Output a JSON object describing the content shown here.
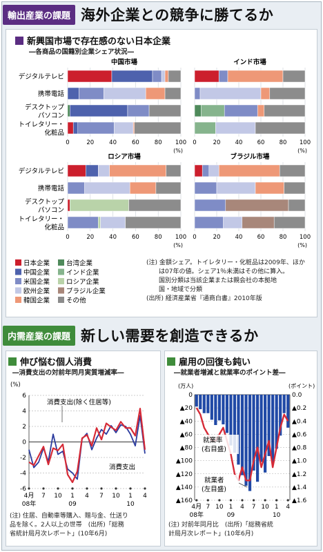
{
  "top": {
    "tag": "輸出産業の課題",
    "title": "海外企業との競争に勝てるか",
    "panel_heading": "新興国市場で存在感のない日本企業",
    "panel_subheading": "―各商品の国籍別企業シェア状況―",
    "unit": "(%)",
    "row_labels": [
      [
        "デジタルテレビ"
      ],
      [
        "携帯電話"
      ],
      [
        "デスクトップ",
        "パソコン"
      ],
      [
        "トイレタリー・",
        "化粧品"
      ]
    ],
    "legend": [
      {
        "label": "日本企業",
        "color": "#cc1f2d"
      },
      {
        "label": "台湾企業",
        "color": "#4f8a5b"
      },
      {
        "label": "中国企業",
        "color": "#4e62ad"
      },
      {
        "label": "インド企業",
        "color": "#86b48d"
      },
      {
        "label": "米国企業",
        "color": "#7f8cc6"
      },
      {
        "label": "ロシア企業",
        "color": "#b9d3a9"
      },
      {
        "label": "欧州企業",
        "color": "#c2c8e6"
      },
      {
        "label": "ブラジル企業",
        "color": "#a8877a"
      },
      {
        "label": "韓国企業",
        "color": "#ee9877"
      },
      {
        "label": "その他",
        "color": "#8c8c8c"
      }
    ],
    "note_lines": [
      "(注) 金額シェア。トイレタリー・化粧品は2009年、ほか",
      "は07年の値。シェア1％未満はその他に算入。",
      "国別分類は当該企業または親会社の本拠地",
      "国・地域で分類",
      "(出所) 経済産業省『通商白書』2010年版"
    ]
  },
  "bottom": {
    "tag": "内需産業の課題",
    "title": "新しい需要を創造できるか",
    "left_heading": "伸び悩む個人消費",
    "left_subheading": "―消費支出の対前年同月実質増減率―",
    "left_notes": [
      "(注) 住居、自動車等購入、贈与金、仕送り",
      "品を除く。2人以上の世帯　(出所)「総務",
      "省統計局月次レポート」(10年6月)"
    ],
    "right_heading": "雇用の回復も鈍い",
    "right_subheading": "―就業者増減と就業率のポイント差―",
    "right_notes": [
      "(注) 対前年同月比　(出所)「総務省統",
      "計局月次レポート」(10年6月)"
    ]
  },
  "chart_data": [
    {
      "type": "bar",
      "title": "中国市場",
      "categories": [
        "デジタルテレビ",
        "携帯電話",
        "デスクトップパソコン",
        "トイレタリー・化粧品"
      ],
      "xlim": [
        0,
        100
      ],
      "series": [
        {
          "name": "日本企業",
          "values": [
            39,
            0,
            0,
            5
          ]
        },
        {
          "name": "台湾企業",
          "values": [
            0,
            0,
            2,
            0
          ]
        },
        {
          "name": "中国企業",
          "values": [
            36,
            10,
            51,
            4
          ]
        },
        {
          "name": "インド企業",
          "values": [
            0,
            0,
            0,
            0
          ]
        },
        {
          "name": "米国企業",
          "values": [
            8,
            22,
            19,
            32
          ]
        },
        {
          "name": "ロシア企業",
          "values": [
            0,
            0,
            0,
            0
          ]
        },
        {
          "name": "欧州企業",
          "values": [
            3,
            37,
            0,
            17
          ]
        },
        {
          "name": "ブラジル企業",
          "values": [
            0,
            0,
            0,
            0
          ]
        },
        {
          "name": "韓国企業",
          "values": [
            3,
            17,
            0,
            1
          ]
        },
        {
          "name": "その他",
          "values": [
            11,
            14,
            28,
            41
          ]
        }
      ]
    },
    {
      "type": "bar",
      "title": "インド市場",
      "categories": [
        "デジタルテレビ",
        "携帯電話",
        "デスクトップパソコン",
        "トイレタリー・化粧品"
      ],
      "xlim": [
        0,
        100
      ],
      "series": [
        {
          "name": "日本企業",
          "values": [
            22,
            0,
            0,
            0
          ]
        },
        {
          "name": "台湾企業",
          "values": [
            0,
            0,
            6,
            0
          ]
        },
        {
          "name": "中国企業",
          "values": [
            0,
            0,
            0,
            0
          ]
        },
        {
          "name": "インド企業",
          "values": [
            0,
            0,
            21,
            19
          ]
        },
        {
          "name": "米国企業",
          "values": [
            8,
            5,
            30,
            0
          ]
        },
        {
          "name": "ロシア企業",
          "values": [
            0,
            0,
            0,
            0
          ]
        },
        {
          "name": "欧州企業",
          "values": [
            0,
            55,
            0,
            36
          ]
        },
        {
          "name": "ブラジル企業",
          "values": [
            0,
            0,
            0,
            0
          ]
        },
        {
          "name": "韓国企業",
          "values": [
            50,
            8,
            6,
            0
          ]
        },
        {
          "name": "その他",
          "values": [
            20,
            32,
            37,
            45
          ]
        }
      ]
    },
    {
      "type": "bar",
      "title": "ロシア市場",
      "categories": [
        "デジタルテレビ",
        "携帯電話",
        "デスクトップパソコン",
        "トイレタリー・化粧品"
      ],
      "xlim": [
        0,
        100
      ],
      "series": [
        {
          "name": "日本企業",
          "values": [
            16,
            0,
            2,
            0
          ]
        },
        {
          "name": "台湾企業",
          "values": [
            0,
            0,
            0,
            0
          ]
        },
        {
          "name": "中国企業",
          "values": [
            11,
            0,
            0,
            0
          ]
        },
        {
          "name": "インド企業",
          "values": [
            0,
            0,
            0,
            0
          ]
        },
        {
          "name": "米国企業",
          "values": [
            0,
            15,
            0,
            27
          ]
        },
        {
          "name": "ロシア企業",
          "values": [
            0,
            0,
            52,
            2
          ]
        },
        {
          "name": "欧州企業",
          "values": [
            10,
            40,
            0,
            22
          ]
        },
        {
          "name": "ブラジル企業",
          "values": [
            0,
            0,
            0,
            0
          ]
        },
        {
          "name": "韓国企業",
          "values": [
            50,
            23,
            0,
            0
          ]
        },
        {
          "name": "その他",
          "values": [
            13,
            22,
            46,
            49
          ]
        }
      ]
    },
    {
      "type": "bar",
      "title": "ブラジル市場",
      "categories": [
        "デジタルテレビ",
        "携帯電話",
        "デスクトップパソコン",
        "トイレタリー・化粧品"
      ],
      "xlim": [
        0,
        100
      ],
      "series": [
        {
          "name": "日本企業",
          "values": [
            7,
            0,
            0,
            0
          ]
        },
        {
          "name": "台湾企業",
          "values": [
            0,
            0,
            0,
            0
          ]
        },
        {
          "name": "中国企業",
          "values": [
            0,
            0,
            0,
            0
          ]
        },
        {
          "name": "インド企業",
          "values": [
            0,
            0,
            0,
            0
          ]
        },
        {
          "name": "米国企業",
          "values": [
            6,
            20,
            28,
            26
          ]
        },
        {
          "name": "ロシア企業",
          "values": [
            0,
            0,
            0,
            0
          ]
        },
        {
          "name": "欧州企業",
          "values": [
            9,
            35,
            0,
            17
          ]
        },
        {
          "name": "ブラジル企業",
          "values": [
            0,
            0,
            57,
            29
          ]
        },
        {
          "name": "韓国企業",
          "values": [
            55,
            26,
            0,
            0
          ]
        },
        {
          "name": "その他",
          "values": [
            23,
            19,
            15,
            28
          ]
        }
      ]
    },
    {
      "type": "line",
      "ylabel": "(%)",
      "ylim": [
        -6,
        6
      ],
      "yticks": [
        -6,
        -4,
        -2,
        0,
        2,
        4,
        6
      ],
      "xtick_labels": [
        {
          "i": 0,
          "label": "4月"
        },
        {
          "i": 3,
          "label": "7"
        },
        {
          "i": 6,
          "label": "10"
        },
        {
          "i": 9,
          "label": "1"
        },
        {
          "i": 12,
          "label": "4"
        },
        {
          "i": 15,
          "label": "7"
        },
        {
          "i": 18,
          "label": "10"
        },
        {
          "i": 21,
          "label": "1"
        },
        {
          "i": 24,
          "label": "4"
        }
      ],
      "year_labels": [
        {
          "i": 0,
          "label": "08年"
        },
        {
          "i": 9,
          "label": "09"
        },
        {
          "i": 21,
          "label": "10"
        }
      ],
      "x": [
        "2008-04",
        "2008-05",
        "2008-06",
        "2008-07",
        "2008-08",
        "2008-09",
        "2008-10",
        "2008-11",
        "2008-12",
        "2009-01",
        "2009-02",
        "2009-03",
        "2009-04",
        "2009-05",
        "2009-06",
        "2009-07",
        "2009-08",
        "2009-09",
        "2009-10",
        "2009-11",
        "2009-12",
        "2010-01",
        "2010-02",
        "2010-03",
        "2010-04"
      ],
      "series": [
        {
          "name": "消費支出(除く住居等)",
          "color": "#2b3b9e",
          "values": [
            -1.0,
            -3.3,
            -2.6,
            -0.8,
            -2.5,
            1.0,
            -1.6,
            -1.2,
            -3.5,
            -4.0,
            -4.8,
            0.4,
            1.1,
            -1.0,
            0.5,
            1.6,
            1.0,
            2.1,
            1.2,
            2.2,
            2.0,
            1.0,
            -0.5,
            3.4,
            -1.5
          ]
        },
        {
          "name": "消費支出",
          "color": "#d62a36",
          "values": [
            -2.6,
            -3.0,
            -1.8,
            -0.6,
            -2.9,
            -0.8,
            -1.1,
            -0.3,
            -4.2,
            -5.2,
            -3.8,
            0.5,
            0.9,
            -0.5,
            1.8,
            0.3,
            2.4,
            1.9,
            1.5,
            2.6,
            1.8,
            1.8,
            0.8,
            4.3,
            -1.0
          ]
        }
      ],
      "annotations": [
        "消費支出(除く住居等)",
        "消費支出"
      ]
    },
    {
      "type": "bar",
      "ylabel": "(万人)",
      "y2label": "(ポイント)",
      "ylim": [
        -160,
        0
      ],
      "y2lim": [
        -1.6,
        0.0
      ],
      "yticks": [
        0,
        -20,
        -40,
        -60,
        -80,
        -100,
        -120,
        -140,
        -160
      ],
      "y2ticks": [
        0.0,
        -0.2,
        -0.4,
        -0.6,
        -0.8,
        -1.0,
        -1.2,
        -1.4,
        -1.6
      ],
      "xtick_labels": [
        {
          "i": 0,
          "label": "4月"
        },
        {
          "i": 3,
          "label": "7"
        },
        {
          "i": 6,
          "label": "10"
        },
        {
          "i": 9,
          "label": "1"
        },
        {
          "i": 12,
          "label": "4"
        },
        {
          "i": 15,
          "label": "7"
        },
        {
          "i": 18,
          "label": "10"
        },
        {
          "i": 21,
          "label": "1"
        },
        {
          "i": 24,
          "label": "4"
        }
      ],
      "year_labels": [
        {
          "i": 0,
          "label": "08年"
        },
        {
          "i": 9,
          "label": "09"
        },
        {
          "i": 21,
          "label": "10"
        }
      ],
      "x": [
        "2008-04",
        "2008-05",
        "2008-06",
        "2008-07",
        "2008-08",
        "2008-09",
        "2008-10",
        "2008-11",
        "2008-12",
        "2009-01",
        "2009-02",
        "2009-03",
        "2009-04",
        "2009-05",
        "2009-06",
        "2009-07",
        "2009-08",
        "2009-09",
        "2009-10",
        "2009-11",
        "2009-12",
        "2010-01",
        "2010-02",
        "2010-03",
        "2010-04"
      ],
      "series": [
        {
          "name": "就業者(左目盛)",
          "axis": "left",
          "color": "#2049a6",
          "values": [
            -18,
            -22,
            -28,
            -28,
            -38,
            -46,
            -39,
            -45,
            -58,
            -77,
            -88,
            -106,
            -122,
            -138,
            -146,
            -115,
            -132,
            -102,
            -118,
            -93,
            -103,
            -82,
            -62,
            -28,
            -50
          ]
        },
        {
          "name": "就業率(右目盛)",
          "axis": "right",
          "color": "#d62a36",
          "values": [
            -0.2,
            -0.3,
            -0.5,
            -0.6,
            -0.7,
            -0.7,
            -0.6,
            -0.5,
            -0.7,
            -0.9,
            -1.2,
            -1.3,
            -1.1,
            -1.3,
            -1.3,
            -1.0,
            -0.8,
            -1.1,
            -0.9,
            -0.7,
            -1.1,
            -0.8,
            -0.5,
            -0.3,
            -0.4
          ]
        }
      ],
      "annotations": [
        "就業率(右目盛)",
        "就業者(左目盛)"
      ]
    }
  ]
}
